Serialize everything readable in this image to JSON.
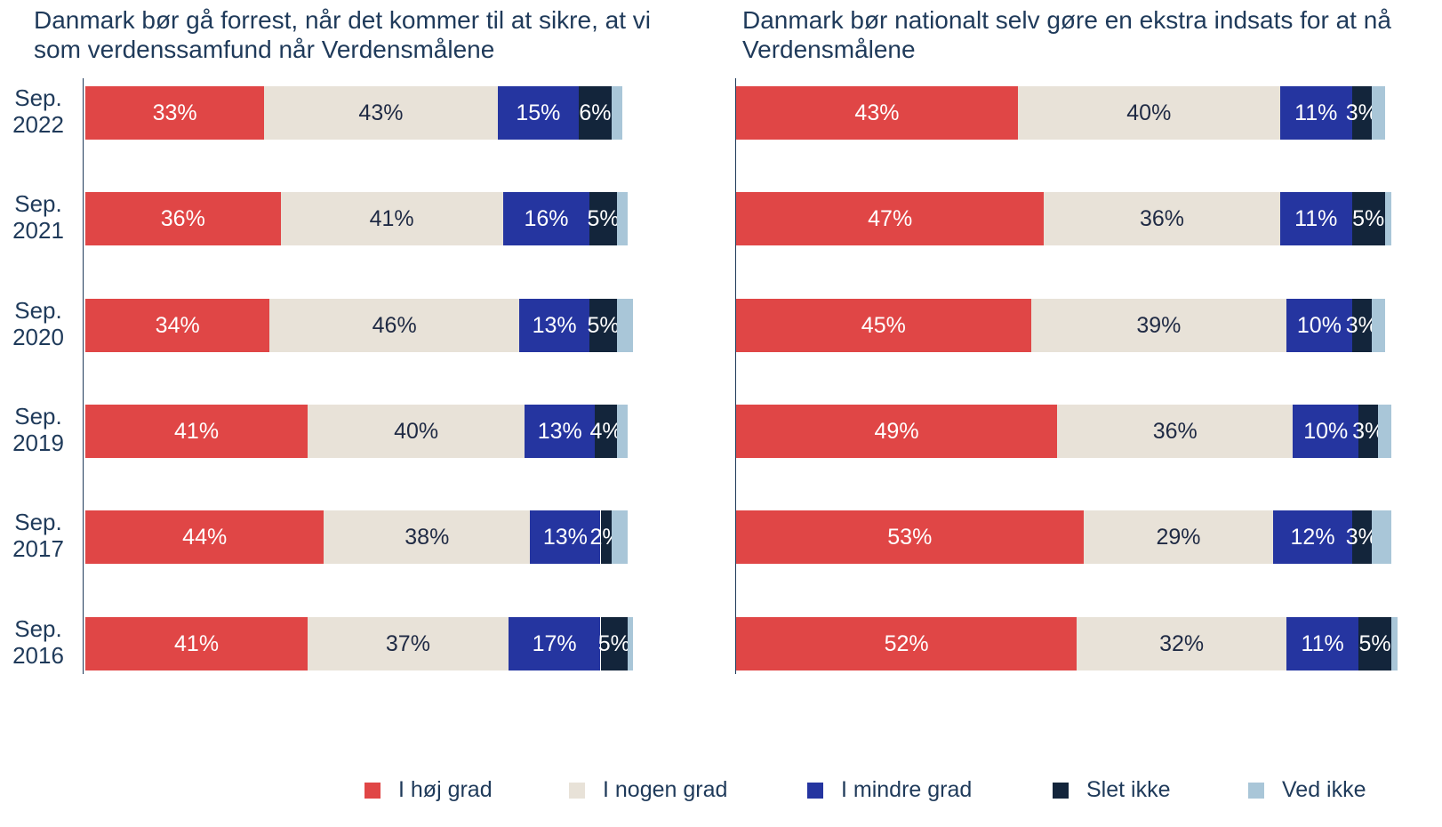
{
  "chart_data": [
    {
      "type": "bar",
      "orientation": "horizontal",
      "stacked": true,
      "title": "Danmark bør gå forrest, når det kommer til at sikre, at vi som verdenssamfund når Verdensmålene",
      "categories": [
        "Sep. 2022",
        "Sep. 2021",
        "Sep. 2020",
        "Sep. 2019",
        "Sep. 2017",
        "Sep. 2016"
      ],
      "xlim": [
        0,
        100
      ],
      "series": [
        {
          "name": "I høj grad",
          "color": "#e04646",
          "values": [
            33,
            36,
            34,
            41,
            44,
            41
          ],
          "value_labels": [
            "33%",
            "36%",
            "34%",
            "41%",
            "44%",
            "41%"
          ]
        },
        {
          "name": "I nogen grad",
          "color": "#e8e2d8",
          "values": [
            43,
            41,
            46,
            40,
            38,
            37
          ],
          "value_labels": [
            "43%",
            "41%",
            "46%",
            "40%",
            "38%",
            "37%"
          ]
        },
        {
          "name": "I mindre grad",
          "color": "#2535a0",
          "values": [
            15,
            16,
            13,
            13,
            13,
            17
          ],
          "value_labels": [
            "15%",
            "16%",
            "13%",
            "13%",
            "13%",
            "17%"
          ]
        },
        {
          "name": "Slet ikke",
          "color": "#13253b",
          "values": [
            6,
            5,
            5,
            4,
            2,
            5
          ],
          "value_labels": [
            "6%",
            "5%",
            "5%",
            "4%",
            "2%",
            "5%"
          ]
        },
        {
          "name": "Ved ikke",
          "color": "#a9c6d8",
          "values": [
            2,
            2,
            3,
            2,
            3,
            1
          ]
        }
      ]
    },
    {
      "type": "bar",
      "orientation": "horizontal",
      "stacked": true,
      "title": "Danmark bør nationalt selv gøre en ekstra indsats for at nå Verdensmålene",
      "xlim": [
        0,
        100
      ],
      "series": [
        {
          "name": "I høj grad",
          "color": "#e04646",
          "values": [
            43,
            47,
            45,
            49,
            53,
            52
          ],
          "value_labels": [
            "43%",
            "47%",
            "45%",
            "49%",
            "53%",
            "52%"
          ]
        },
        {
          "name": "I nogen grad",
          "color": "#e8e2d8",
          "values": [
            40,
            36,
            39,
            36,
            29,
            32
          ],
          "value_labels": [
            "40%",
            "36%",
            "39%",
            "36%",
            "29%",
            "32%"
          ]
        },
        {
          "name": "I mindre grad",
          "color": "#2535a0",
          "values": [
            11,
            11,
            10,
            10,
            12,
            11
          ],
          "value_labels": [
            "11%",
            "11%",
            "10%",
            "10%",
            "12%",
            "11%"
          ]
        },
        {
          "name": "Slet ikke",
          "color": "#13253b",
          "values": [
            3,
            5,
            3,
            3,
            3,
            5
          ],
          "value_labels": [
            "3%",
            "5%",
            "3%",
            "3%",
            "3%",
            "5%"
          ]
        },
        {
          "name": "Ved ikke",
          "color": "#a9c6d8",
          "values": [
            2,
            1,
            2,
            2,
            3,
            1
          ]
        }
      ]
    }
  ]
}
